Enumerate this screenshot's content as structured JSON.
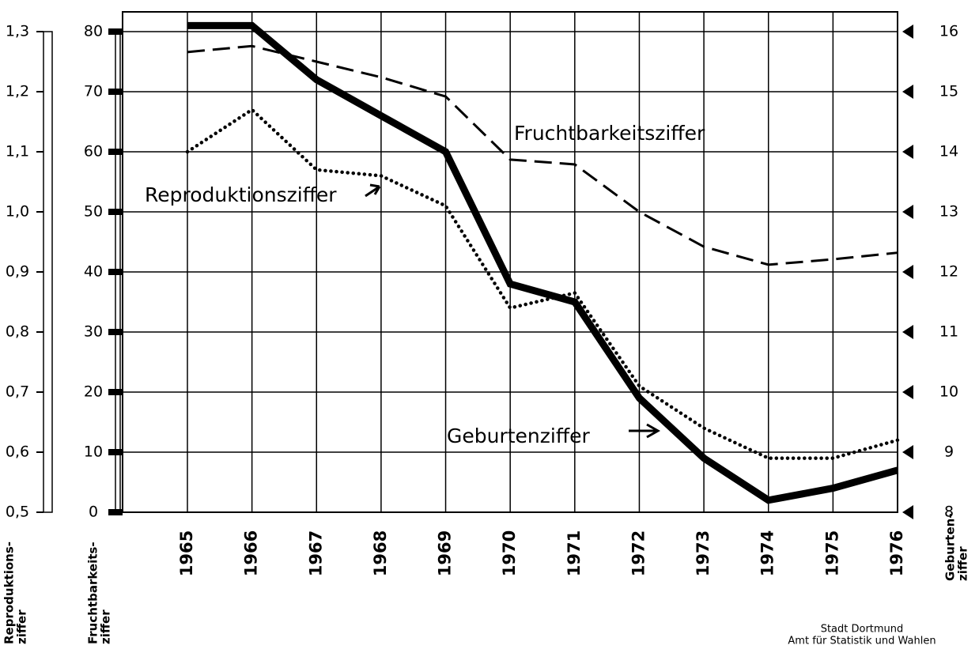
{
  "chart_data": {
    "type": "line",
    "categories": [
      "1965",
      "1966",
      "1967",
      "1968",
      "1969",
      "1970",
      "1971",
      "1972",
      "1973",
      "1974",
      "1975",
      "1976"
    ],
    "ylabel": [
      "Fruchtbarkeits-",
      "ziffer"
    ],
    "ylim": [
      0,
      80
    ],
    "yticks": [
      0,
      10,
      20,
      30,
      40,
      50,
      60,
      70,
      80
    ],
    "y2label": [
      "Geburten-",
      "ziffer"
    ],
    "y2lim": [
      8,
      16
    ],
    "y2ticks": [
      8,
      9,
      10,
      11,
      12,
      13,
      14,
      15,
      16
    ],
    "y3label": [
      "Reproduktions-",
      "ziffer"
    ],
    "y3lim": [
      0.5,
      1.3
    ],
    "y3ticks": [
      {
        "value": 0.5,
        "label": "0,5"
      },
      {
        "value": 0.6,
        "label": "0,6"
      },
      {
        "value": 0.7,
        "label": "0,7"
      },
      {
        "value": 0.8,
        "label": "0,8"
      },
      {
        "value": 0.9,
        "label": "0,9"
      },
      {
        "value": 1.0,
        "label": "1,0"
      },
      {
        "value": 1.1,
        "label": "1,1"
      },
      {
        "value": 1.2,
        "label": "1,2"
      },
      {
        "value": 1.3,
        "label": "1,3"
      }
    ],
    "grid": true,
    "series": [
      {
        "name": "Geburtenziffer",
        "color": "#000000",
        "style": "solid",
        "axis": "y2",
        "values": [
          16.1,
          16.1,
          15.2,
          14.6,
          14.0,
          11.8,
          11.5,
          9.9,
          8.9,
          8.2,
          8.4,
          8.7
        ]
      },
      {
        "name": "Fruchtbarkeitsziffer",
        "color": "#000000",
        "style": "dashed",
        "axis": "y",
        "values": [
          76.6,
          77.6,
          75.0,
          72.4,
          69.2,
          58.7,
          57.9,
          50.0,
          44.2,
          41.2,
          42.1,
          43.2
        ]
      },
      {
        "name": "Reproduktionsziffer",
        "color": "#000000",
        "style": "dotted",
        "axis": "y3",
        "values": [
          1.1,
          1.17,
          1.07,
          1.06,
          1.01,
          0.84,
          0.865,
          0.71,
          0.64,
          0.59,
          0.59,
          0.62
        ]
      }
    ],
    "source": [
      "Stadt Dortmund",
      "Amt für Statistik und Wahlen"
    ]
  }
}
